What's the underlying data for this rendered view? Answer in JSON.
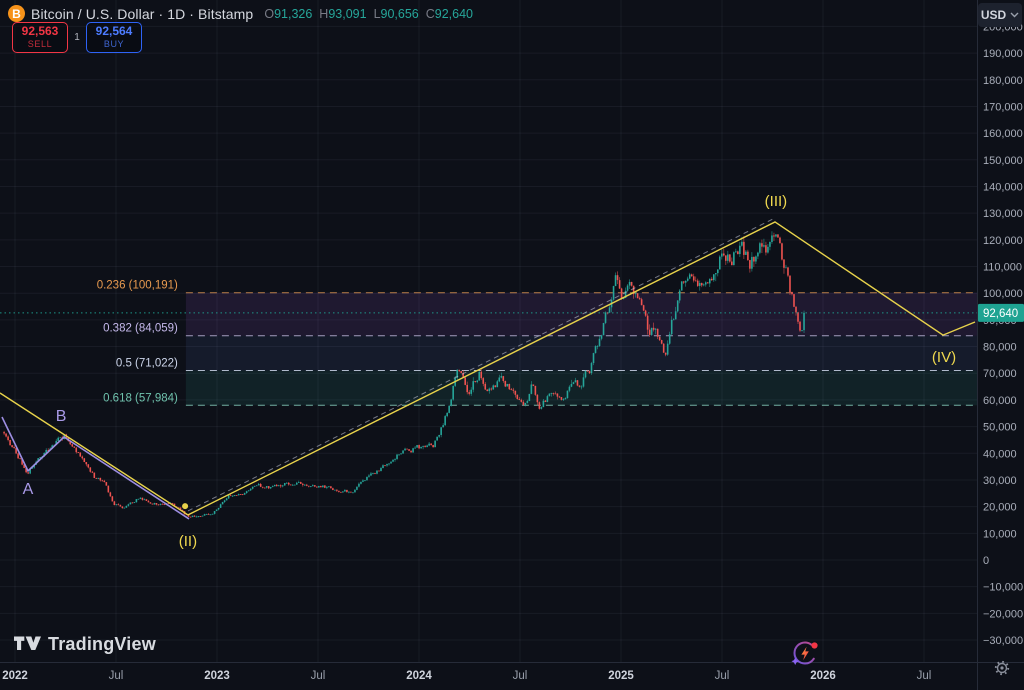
{
  "header": {
    "title": "Bitcoin / U.S. Dollar · 1D · Bitstamp",
    "ohlc": {
      "o_label": "O",
      "o": "91,326",
      "h_label": "H",
      "h": "93,091",
      "l_label": "L",
      "l": "90,656",
      "c_label": "C",
      "c": "92,640"
    },
    "sell": {
      "price": "92,563",
      "label": "SELL"
    },
    "spread": "1",
    "buy": {
      "price": "92,564",
      "label": "BUY"
    },
    "currency": {
      "value": "USD"
    }
  },
  "watermark": {
    "text": "TradingView"
  },
  "colors": {
    "background": "#0d1018",
    "grid": "rgba(170,182,218,0.07)",
    "axis_text": "#a9aeba",
    "axis_separator": "#262b38",
    "up": "#26a69a",
    "down": "#ef5350",
    "accent_yellow": "#e7d24b",
    "accent_purple": "#9d8ee2",
    "bitcoin_orange": "#f7931a",
    "sell_red": "#f23645",
    "buy_blue": "#2e63f6"
  },
  "chart_data": {
    "type": "candlestick",
    "symbol": "Bitcoin / U.S. Dollar",
    "interval": "1D",
    "exchange": "Bitstamp",
    "up_color": "#26a69a",
    "down_color": "#ef5350",
    "y_axis": {
      "min": -30000,
      "max": 200000,
      "step": 10000
    },
    "x_axis": {
      "ticks": [
        {
          "t": 2022.0,
          "label": "2022",
          "major": true
        },
        {
          "t": 2022.5,
          "label": "Jul",
          "major": false
        },
        {
          "t": 2023.0,
          "label": "2023",
          "major": true
        },
        {
          "t": 2023.5,
          "label": "Jul",
          "major": false
        },
        {
          "t": 2024.0,
          "label": "2024",
          "major": true
        },
        {
          "t": 2024.5,
          "label": "Jul",
          "major": false
        },
        {
          "t": 2025.0,
          "label": "2025",
          "major": true
        },
        {
          "t": 2025.5,
          "label": "Jul",
          "major": false
        },
        {
          "t": 2026.0,
          "label": "2026",
          "major": true
        },
        {
          "t": 2026.5,
          "label": "Jul",
          "major": false
        }
      ]
    },
    "current_price": {
      "value": 92640,
      "display": "92,640",
      "color": "#1fa392"
    },
    "fibonacci": {
      "x_start_t": 2022.846,
      "levels": [
        {
          "ratio": 0.236,
          "price": 100191,
          "label": "0.236 (100,191)",
          "text_color": "#e89a4f",
          "line_color": "rgba(205,140,80,0.9)"
        },
        {
          "ratio": 0.382,
          "price": 84059,
          "label": "0.382 (84,059)",
          "text_color": "#c4b8ea",
          "line_color": "rgba(198,190,226,0.8)"
        },
        {
          "ratio": 0.5,
          "price": 71022,
          "label": "0.5 (71,022)",
          "text_color": "#ccd5ea",
          "line_color": "rgba(216,226,246,0.8)"
        },
        {
          "ratio": 0.618,
          "price": 57984,
          "label": "0.618 (57,984)",
          "text_color": "#6fc2ad",
          "line_color": "rgba(140,214,198,0.8)"
        }
      ],
      "bands": [
        {
          "from": 100191,
          "to": 84059,
          "fill": "rgba(155,95,215,0.13)"
        },
        {
          "from": 84059,
          "to": 71022,
          "fill": "rgba(95,125,215,0.10)"
        },
        {
          "from": 71022,
          "to": 57984,
          "fill": "rgba(48,165,148,0.13)"
        }
      ]
    },
    "elliott_waves": {
      "primary_line": {
        "color": "#e7d24b",
        "points": [
          [
            2021.9257,
            62600
          ],
          [
            2022.8564,
            16900
          ],
          [
            2025.7624,
            126700
          ],
          [
            2026.5941,
            84300
          ],
          [
            2026.7525,
            89200
          ]
        ]
      },
      "abc_line": {
        "color": "#9d8ee2",
        "points": [
          [
            2021.9356,
            53600
          ],
          [
            2022.0644,
            33400
          ],
          [
            2022.2426,
            46100
          ],
          [
            2022.8614,
            15400
          ]
        ]
      },
      "trend_dashed": {
        "color": "rgba(205,210,225,0.55)",
        "from": [
          2022.8564,
          16900
        ],
        "to": [
          2025.7624,
          126700
        ]
      },
      "anchor_dot": {
        "t": 2022.842,
        "price": 20200,
        "color": "#e7d24b"
      },
      "labels": [
        {
          "text": "A",
          "t": 2022.064,
          "price": 26600,
          "color": "#a99ae8",
          "size": 16
        },
        {
          "text": "B",
          "t": 2022.228,
          "price": 54000,
          "color": "#a99ae8",
          "size": 16
        },
        {
          "text": "(II)",
          "t": 2022.856,
          "price": 7100,
          "color": "#f0d94f",
          "size": 15
        },
        {
          "text": "(III)",
          "t": 2025.767,
          "price": 134600,
          "color": "#f0d94f",
          "size": 15
        },
        {
          "text": "(IV)",
          "t": 2026.599,
          "price": 76100,
          "color": "#f0d94f",
          "size": 15
        }
      ]
    },
    "candles": {
      "t_start": 2021.941,
      "t_end": 2025.911,
      "count": 400,
      "seed": 11,
      "anchors": [
        [
          2021.941,
          48000
        ],
        [
          2022.064,
          33000
        ],
        [
          2022.124,
          39400
        ],
        [
          2022.243,
          46500
        ],
        [
          2022.322,
          39400
        ],
        [
          2022.396,
          30700
        ],
        [
          2022.446,
          29600
        ],
        [
          2022.485,
          21000
        ],
        [
          2022.545,
          19500
        ],
        [
          2022.619,
          23600
        ],
        [
          2022.708,
          21000
        ],
        [
          2022.777,
          21400
        ],
        [
          2022.827,
          18400
        ],
        [
          2022.856,
          16100
        ],
        [
          2022.916,
          16900
        ],
        [
          2022.975,
          17200
        ],
        [
          2023.054,
          24400
        ],
        [
          2023.139,
          25100
        ],
        [
          2023.203,
          28100
        ],
        [
          2023.272,
          26600
        ],
        [
          2023.351,
          28900
        ],
        [
          2023.436,
          28900
        ],
        [
          2023.51,
          27700
        ],
        [
          2023.599,
          26600
        ],
        [
          2023.668,
          25100
        ],
        [
          2023.748,
          30700
        ],
        [
          2023.832,
          35200
        ],
        [
          2023.916,
          40500
        ],
        [
          2024.0,
          42400
        ],
        [
          2024.069,
          42700
        ],
        [
          2024.134,
          54000
        ],
        [
          2024.193,
          71600
        ],
        [
          2024.247,
          63700
        ],
        [
          2024.297,
          70100
        ],
        [
          2024.356,
          62600
        ],
        [
          2024.416,
          67800
        ],
        [
          2024.47,
          63300
        ],
        [
          2024.515,
          58800
        ],
        [
          2024.559,
          65200
        ],
        [
          2024.604,
          56600
        ],
        [
          2024.653,
          62600
        ],
        [
          2024.693,
          59600
        ],
        [
          2024.743,
          63300
        ],
        [
          2024.792,
          65200
        ],
        [
          2024.842,
          70800
        ],
        [
          2024.891,
          82100
        ],
        [
          2024.941,
          96300
        ],
        [
          2024.975,
          106400
        ],
        [
          2025.01,
          97100
        ],
        [
          2025.05,
          104600
        ],
        [
          2025.089,
          97800
        ],
        [
          2025.139,
          85800
        ],
        [
          2025.178,
          85800
        ],
        [
          2025.218,
          78300
        ],
        [
          2025.257,
          90300
        ],
        [
          2025.307,
          102700
        ],
        [
          2025.347,
          106100
        ],
        [
          2025.386,
          100800
        ],
        [
          2025.426,
          104600
        ],
        [
          2025.465,
          108300
        ],
        [
          2025.505,
          115800
        ],
        [
          2025.545,
          113900
        ],
        [
          2025.594,
          119600
        ],
        [
          2025.634,
          111300
        ],
        [
          2025.678,
          115800
        ],
        [
          2025.723,
          117700
        ],
        [
          2025.762,
          124400
        ],
        [
          2025.792,
          113900
        ],
        [
          2025.822,
          107600
        ],
        [
          2025.847,
          99000
        ],
        [
          2025.871,
          90000
        ],
        [
          2025.891,
          82800
        ],
        [
          2025.911,
          92640
        ]
      ]
    }
  }
}
